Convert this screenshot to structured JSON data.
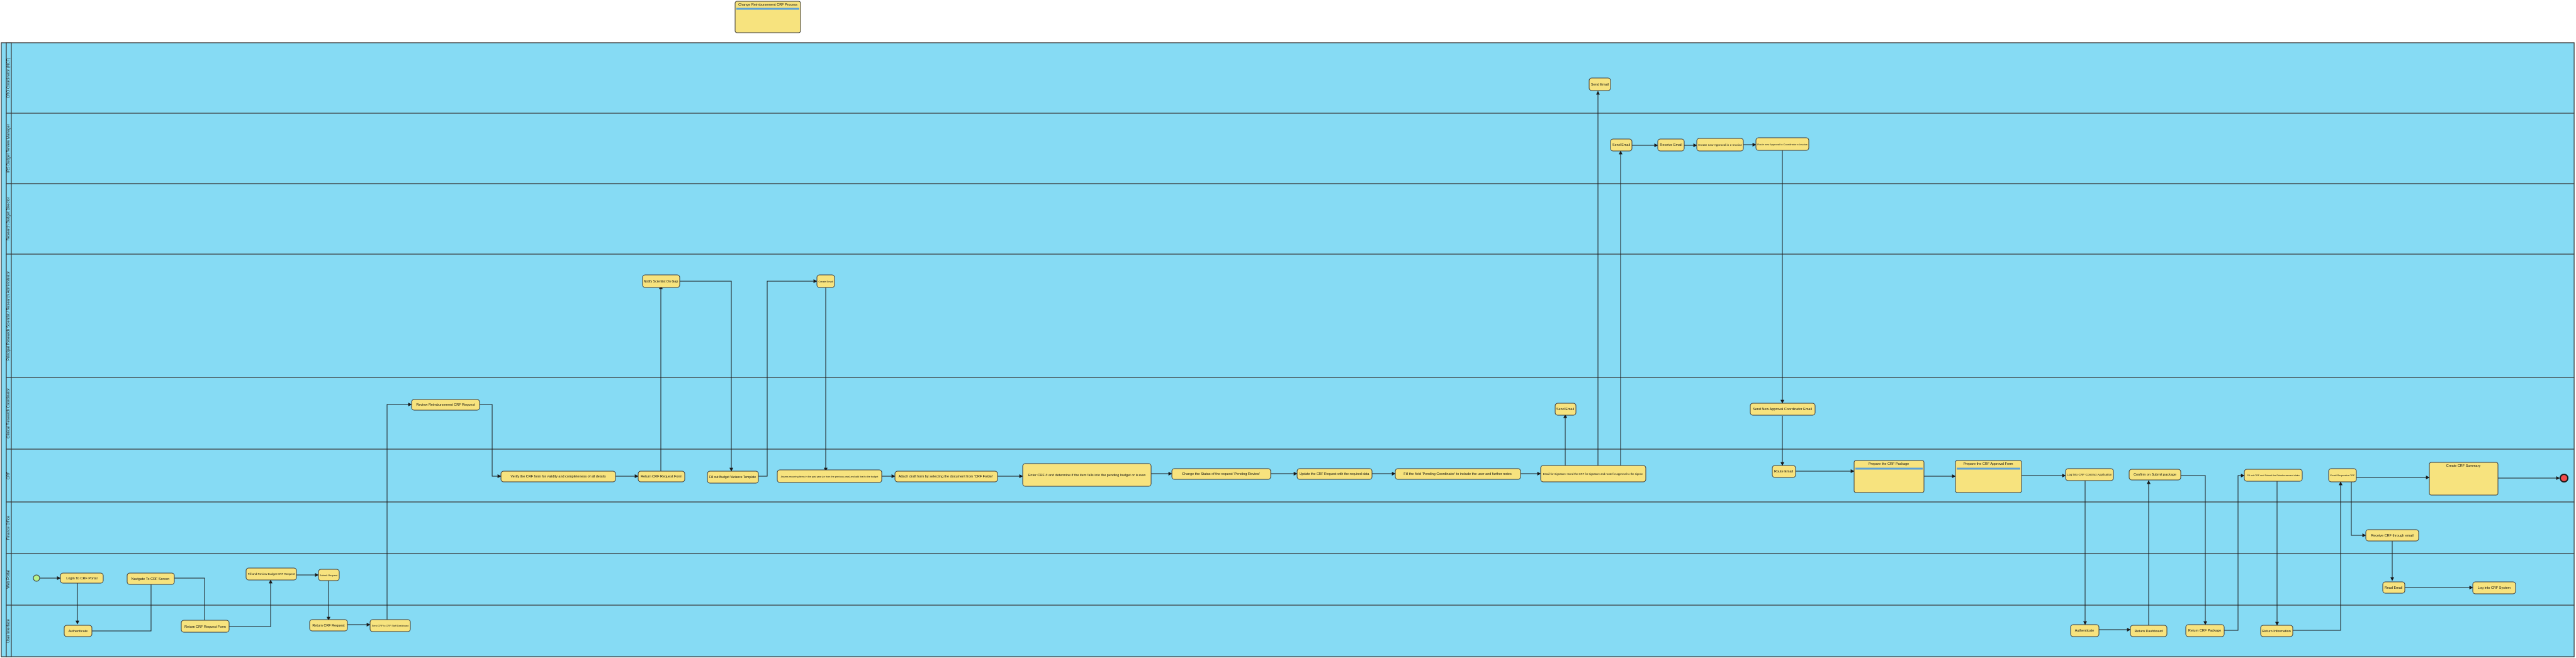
{
  "legend": {
    "title": "Change Reimbursement CRF Process"
  },
  "lanes": [
    {
      "id": "cro",
      "label": "CRO Coordinator (NCT)"
    },
    {
      "id": "mgr",
      "label": "IRS Budget Review Manager"
    },
    {
      "id": "dir",
      "label": "Research Budget Director"
    },
    {
      "id": "sci",
      "label": "Principal Research Scientist / Research Administrator"
    },
    {
      "id": "crc",
      "label": "Clinical Research Coordinator"
    },
    {
      "id": "crf",
      "label": "CRF"
    },
    {
      "id": "fin",
      "label": "Finance Office"
    },
    {
      "id": "web",
      "label": "Web Portal"
    },
    {
      "id": "ui",
      "label": "User Interface"
    }
  ],
  "tasks": [
    {
      "id": "t1",
      "label": "Login To CRF Portal"
    },
    {
      "id": "t2",
      "label": "Authenticate"
    },
    {
      "id": "t3",
      "label": "Navigate To CRF Screen"
    },
    {
      "id": "t4",
      "label": "Return CRF Request Form"
    },
    {
      "id": "t5",
      "label": "Fill and Review Budget CRF Request"
    },
    {
      "id": "t6",
      "label": "Submit Request"
    },
    {
      "id": "t7",
      "label": "Return CRF Request"
    },
    {
      "id": "t8",
      "label": "Send CRF to CRF Staff Dashboard"
    },
    {
      "id": "t9",
      "label": "Review Reimbursement CRF Request"
    },
    {
      "id": "t10",
      "label": "Verify the CRF form for validity and completeness of all details"
    },
    {
      "id": "t11",
      "label": "Return CRF Request Form"
    },
    {
      "id": "t12",
      "label": "Notify Scientist On Gap"
    },
    {
      "id": "t13",
      "label": "Fill out Budget Variance Template"
    },
    {
      "id": "t14",
      "label": "Create Email"
    },
    {
      "id": "t15",
      "label": "Assess recurring items in the past year (or from the previous year) and add that to the budget"
    },
    {
      "id": "t16",
      "label": "Attach draft form by selecting the document from 'CRF Folder'"
    },
    {
      "id": "t17",
      "label": "Enter CRF # and determine if the item falls into the pending budget or is new"
    },
    {
      "id": "t18",
      "label": "Change the Status of the request 'Pending Review'"
    },
    {
      "id": "t19",
      "label": "Update the CRF Request with the required data"
    },
    {
      "id": "t20",
      "label": "Fill the field 'Pending Coordinator' to include the user and further notes"
    },
    {
      "id": "t21",
      "label": "Email for Signature: Send the CRF for signature and route for approval to the signee"
    },
    {
      "id": "t22",
      "label": "Send Email"
    },
    {
      "id": "t23",
      "label": "Send Email"
    },
    {
      "id": "t24",
      "label": "Send Email"
    },
    {
      "id": "t25",
      "label": "Receive Email"
    },
    {
      "id": "t26",
      "label": "Create new Approval in e-Invoice"
    },
    {
      "id": "t27",
      "label": "Route new Approval to Coordinator e-Invoice"
    },
    {
      "id": "t28",
      "label": "Send New Approval Coordinator Email"
    },
    {
      "id": "t29",
      "label": "Route Email"
    },
    {
      "id": "t30",
      "label": "Log into CRF Contract Application"
    },
    {
      "id": "t31",
      "label": "Confirm on Submit package"
    },
    {
      "id": "t32",
      "label": "Fill out CRF and Submit the Reimbursement claim"
    },
    {
      "id": "t33",
      "label": "Email Requestor CRF"
    },
    {
      "id": "t34",
      "label": "Receive CRF through email"
    },
    {
      "id": "t35",
      "label": "Read Email"
    },
    {
      "id": "t36",
      "label": "Log into CRF System"
    },
    {
      "id": "t37",
      "label": "Authenticate"
    },
    {
      "id": "t38",
      "label": "Return Dashboard"
    },
    {
      "id": "t39",
      "label": "Return CRF Package"
    },
    {
      "id": "t40",
      "label": "Return Information"
    }
  ],
  "notes": [
    {
      "id": "n1",
      "title": "Prepare the CRF Package"
    },
    {
      "id": "n2",
      "title": "Prepare the CRF Approval Form"
    },
    {
      "id": "n3",
      "title": "Create CRF Summary"
    }
  ]
}
